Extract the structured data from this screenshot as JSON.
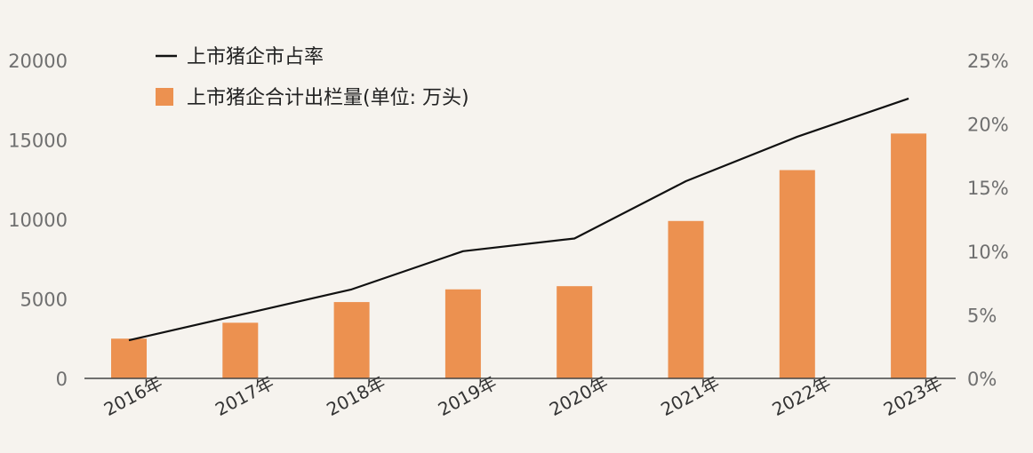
{
  "chart_data": {
    "type": "bar",
    "categories": [
      "2016年",
      "2017年",
      "2018年",
      "2019年",
      "2020年",
      "2021年",
      "2022年",
      "2023年"
    ],
    "series": [
      {
        "name": "上市猪企合计出栏量(单位: 万头)",
        "type": "bar",
        "axis": "left",
        "color": "#ec9150",
        "values": [
          2500,
          3500,
          4800,
          5600,
          5800,
          9900,
          13100,
          15400
        ]
      },
      {
        "name": "上市猪企市占率",
        "type": "line",
        "axis": "right",
        "color": "#111111",
        "values": [
          3.0,
          5.0,
          7.0,
          10.0,
          11.0,
          15.5,
          19.0,
          22.0
        ]
      }
    ],
    "y_left": {
      "ylim": [
        0,
        20000
      ],
      "ticks": [
        "0",
        "5000",
        "10000",
        "15000",
        "20000"
      ]
    },
    "y_right": {
      "ylim": [
        0,
        25
      ],
      "ticks": [
        "0%",
        "5%",
        "10%",
        "15%",
        "20%",
        "25%"
      ]
    },
    "grid": false,
    "legend": "top-left"
  }
}
